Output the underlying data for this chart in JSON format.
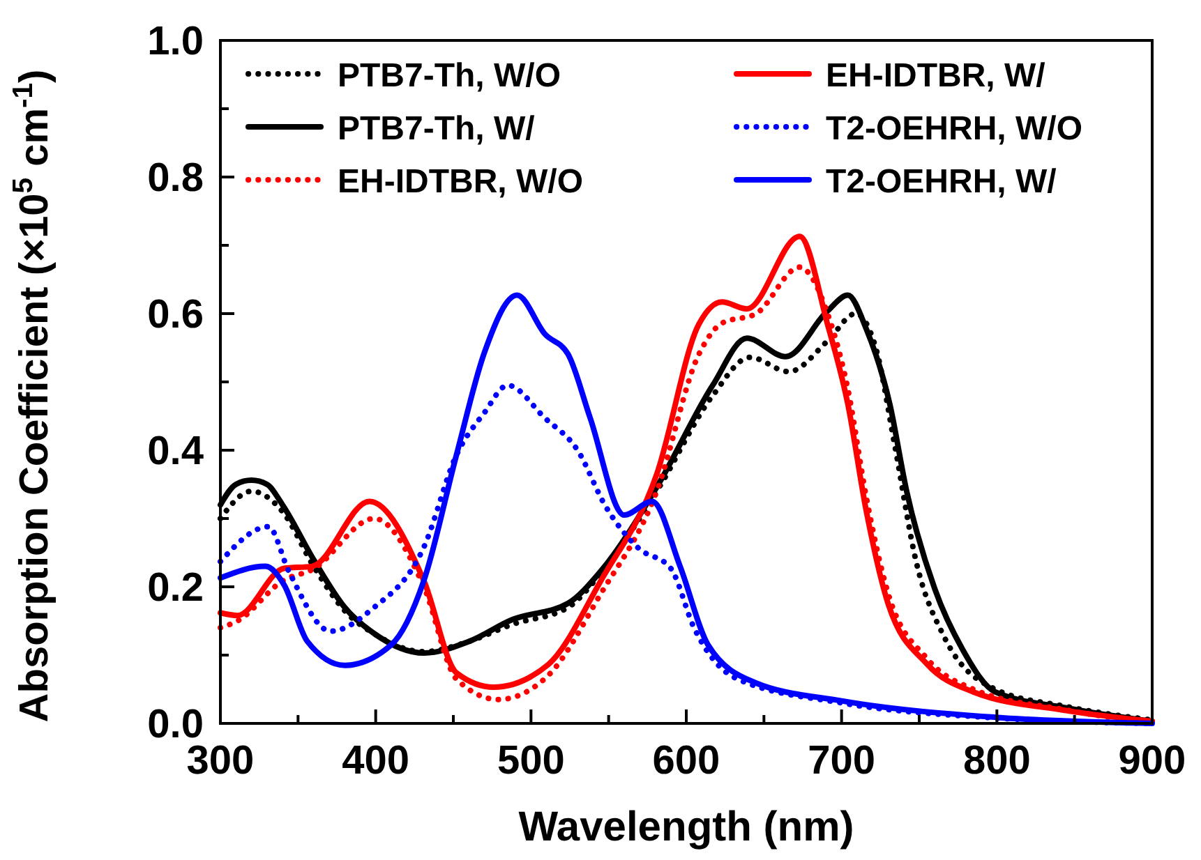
{
  "chart_data": {
    "type": "line",
    "xlabel": "Wavelength (nm)",
    "ylabel": "Absorption Coefficient (×10$^{5}$ cm$^{-1}$)",
    "xlim": [
      300,
      900
    ],
    "ylim": [
      0,
      1
    ],
    "xticks": [
      300,
      {
        "value": 350,
        "label": null
      },
      400,
      {
        "value": 450,
        "label": null
      },
      500,
      {
        "value": 550,
        "label": null
      },
      600,
      {
        "value": 650,
        "label": null
      },
      700,
      {
        "value": 750,
        "label": null
      },
      800,
      {
        "value": 850,
        "label": null
      },
      900
    ],
    "yticks": [
      {
        "value": 0,
        "label": "0.0"
      },
      {
        "value": 0.1,
        "label": null
      },
      0.2,
      {
        "value": 0.3,
        "label": null
      },
      0.4,
      {
        "value": 0.5,
        "label": null
      },
      0.6,
      {
        "value": 0.7,
        "label": null
      },
      0.8,
      {
        "value": 0.9,
        "label": null
      },
      {
        "value": 1,
        "label": "1.0"
      }
    ],
    "grid": false,
    "legend": "top",
    "marker": "none",
    "series": [
      {
        "name": "PTB7-Th, W/O",
        "color": "#000000",
        "line_style": "dotted",
        "x": [
          300,
          320,
          340,
          360,
          380,
          400,
          431,
          460,
          488,
          524,
          545,
          581,
          617,
          641,
          666,
          691,
          709,
          722,
          734,
          748,
          766,
          799,
          844,
          900
        ],
        "values": [
          0.3,
          0.34,
          0.31,
          0.23,
          0.165,
          0.13,
          0.105,
          0.12,
          0.145,
          0.17,
          0.22,
          0.34,
          0.48,
          0.536,
          0.515,
          0.56,
          0.6,
          0.55,
          0.41,
          0.237,
          0.127,
          0.05,
          0.025,
          0.005
        ]
      },
      {
        "name": "PTB7-Th, W/",
        "color": "#000000",
        "line_style": "solid",
        "x": [
          300,
          310,
          320,
          330,
          340,
          360,
          380,
          400,
          431,
          460,
          488,
          524,
          545,
          581,
          617,
          639,
          664,
          691,
          704,
          716,
          731,
          742,
          760,
          778,
          799,
          844,
          900
        ],
        "values": [
          0.32,
          0.35,
          0.356,
          0.35,
          0.32,
          0.24,
          0.17,
          0.13,
          0.103,
          0.12,
          0.152,
          0.176,
          0.223,
          0.346,
          0.495,
          0.564,
          0.537,
          0.604,
          0.627,
          0.577,
          0.468,
          0.339,
          0.197,
          0.108,
          0.046,
          0.023,
          0.003
        ]
      },
      {
        "name": "EH-IDTBR, W/O",
        "color": "#ff0000",
        "line_style": "dotted",
        "x": [
          300,
          311,
          341,
          359,
          399,
          431,
          452,
          479,
          511,
          545,
          581,
          608,
          623,
          645,
          673,
          691,
          704,
          716,
          730,
          755,
          785,
          844,
          900
        ],
        "values": [
          0.14,
          0.15,
          0.21,
          0.225,
          0.3,
          0.2,
          0.065,
          0.035,
          0.07,
          0.19,
          0.34,
          0.54,
          0.586,
          0.6,
          0.668,
          0.6,
          0.49,
          0.33,
          0.19,
          0.095,
          0.05,
          0.02,
          0.0
        ]
      },
      {
        "name": "EH-IDTBR, W/",
        "color": "#ff0000",
        "line_style": "solid",
        "x": [
          300,
          311,
          341,
          359,
          396,
          431,
          452,
          476,
          511,
          545,
          581,
          608,
          623,
          639,
          673,
          691,
          704,
          716,
          730,
          755,
          785,
          844,
          900
        ],
        "values": [
          0.162,
          0.158,
          0.227,
          0.23,
          0.325,
          0.209,
          0.074,
          0.053,
          0.086,
          0.209,
          0.365,
          0.584,
          0.617,
          0.607,
          0.713,
          0.584,
          0.468,
          0.31,
          0.175,
          0.087,
          0.046,
          0.019,
          0.003
        ]
      },
      {
        "name": "T2-OEHRH, W/O",
        "color": "#0000ff",
        "line_style": "dotted",
        "x": [
          300,
          331,
          344,
          371,
          398,
          431,
          452,
          470,
          485,
          509,
          530,
          548,
          569,
          590,
          605,
          632,
          700,
          799,
          900
        ],
        "values": [
          0.237,
          0.288,
          0.223,
          0.135,
          0.168,
          0.258,
          0.393,
          0.455,
          0.495,
          0.447,
          0.4,
          0.318,
          0.257,
          0.227,
          0.14,
          0.066,
          0.03,
          0.008,
          0.0
        ]
      },
      {
        "name": "T2-OEHRH, W/",
        "color": "#0000ff",
        "line_style": "solid",
        "x": [
          300,
          329,
          341,
          356,
          380,
          410,
          431,
          452,
          470,
          491,
          509,
          524,
          538,
          560,
          578,
          596,
          614,
          644,
          700,
          799,
          900
        ],
        "values": [
          0.213,
          0.23,
          0.203,
          0.12,
          0.085,
          0.115,
          0.209,
          0.393,
          0.543,
          0.627,
          0.57,
          0.54,
          0.448,
          0.305,
          0.325,
          0.23,
          0.115,
          0.06,
          0.033,
          0.009,
          0.0
        ]
      }
    ]
  }
}
